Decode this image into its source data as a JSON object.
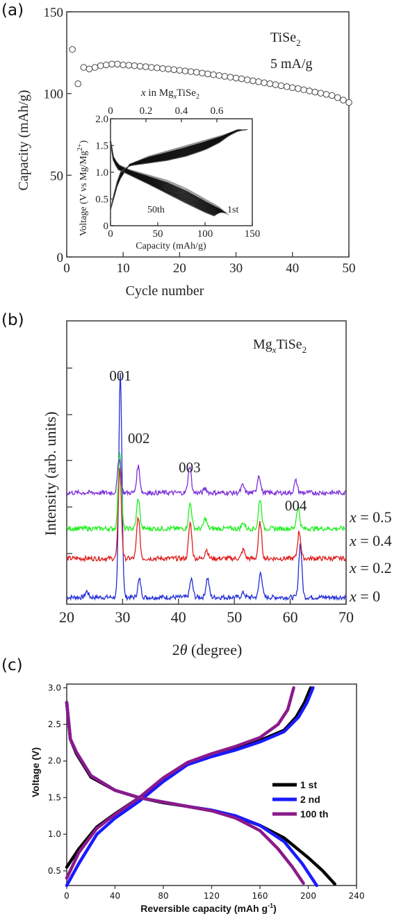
{
  "panels": [
    {
      "label": "(a)",
      "annotation_main": "TiSe",
      "annotation_sub": "2",
      "annotation_rate": "5 mA/g"
    },
    {
      "label": "(b)",
      "annotation_main": "Mg",
      "annotation_x": "x",
      "annotation_rest": "TiSe",
      "annotation_sub": "2"
    },
    {
      "label": "(c)"
    }
  ],
  "chart_data": [
    {
      "type": "scatter",
      "xlabel": "Cycle number",
      "ylabel": "Capacity (mAh/g)",
      "xlim": [
        0,
        50
      ],
      "ylim": [
        0,
        150
      ],
      "xticks": [
        0,
        10,
        20,
        30,
        40,
        50
      ],
      "yticks": [
        0,
        50,
        100,
        150
      ],
      "x": [
        1,
        2,
        3,
        4,
        5,
        6,
        7,
        8,
        9,
        10,
        11,
        12,
        13,
        14,
        15,
        16,
        17,
        18,
        19,
        20,
        21,
        22,
        23,
        24,
        25,
        26,
        27,
        28,
        29,
        30,
        31,
        32,
        33,
        34,
        35,
        36,
        37,
        38,
        39,
        40,
        41,
        42,
        43,
        44,
        45,
        46,
        47,
        48,
        49,
        50
      ],
      "y": [
        127,
        106,
        116,
        115,
        116,
        117,
        117.5,
        118,
        118,
        117.5,
        117.3,
        117,
        116.7,
        116.4,
        116,
        115.7,
        115.3,
        115,
        114.6,
        114.2,
        113.8,
        113.4,
        113,
        112.5,
        112,
        111.5,
        111,
        110.5,
        110,
        109.5,
        109,
        108.4,
        107.8,
        107.2,
        106.6,
        106,
        105.4,
        104.8,
        104.2,
        103.6,
        103,
        102.3,
        101.6,
        100.9,
        100.2,
        99.5,
        98.8,
        97.5,
        96,
        94.5
      ],
      "inset": {
        "type": "line",
        "xlabel": "Capacity (mAh/g)",
        "ylabel": "Voltage (V vs Mg/Mg",
        "ylabel_sup": "2+",
        "ylabel_close": ")",
        "top_axis_label_pre": "x",
        "top_axis_label_post": " in Mg",
        "top_axis_label_x": "x",
        "top_axis_label_tail": "TiSe",
        "top_axis_label_sub": "2",
        "xlim": [
          0,
          150
        ],
        "ylim": [
          0,
          2.0
        ],
        "xticks": [
          0,
          50,
          100,
          150
        ],
        "yticks": [
          0,
          0.5,
          1.0,
          1.5,
          2.0
        ],
        "yticklabels": [
          "0",
          "0.5",
          "1.0",
          "1.5",
          "2.0"
        ],
        "top_xlim": [
          0,
          0.8
        ],
        "top_xticks": [
          0,
          0.2,
          0.4,
          0.6
        ],
        "top_xticklabels": [
          "0",
          "0.2",
          "0.4",
          "0.6"
        ],
        "label_first": "1st",
        "label_fiftieth": "50th",
        "first_discharge": [
          [
            0,
            1.6
          ],
          [
            3,
            1.3
          ],
          [
            8,
            1.15
          ],
          [
            20,
            1.05
          ],
          [
            40,
            0.95
          ],
          [
            60,
            0.85
          ],
          [
            80,
            0.7
          ],
          [
            100,
            0.5
          ],
          [
            115,
            0.35
          ],
          [
            125,
            0.2
          ]
        ],
        "first_charge": [
          [
            0,
            0.3
          ],
          [
            8,
            0.8
          ],
          [
            20,
            1.15
          ],
          [
            40,
            1.3
          ],
          [
            60,
            1.4
          ],
          [
            80,
            1.5
          ],
          [
            100,
            1.6
          ],
          [
            120,
            1.7
          ],
          [
            135,
            1.8
          ]
        ],
        "last_discharge": [
          [
            0,
            1.55
          ],
          [
            3,
            1.2
          ],
          [
            8,
            1.05
          ],
          [
            20,
            0.95
          ],
          [
            40,
            0.78
          ],
          [
            60,
            0.6
          ],
          [
            80,
            0.42
          ],
          [
            100,
            0.25
          ],
          [
            110,
            0.18
          ]
        ],
        "last_charge": [
          [
            0,
            0.3
          ],
          [
            5,
            0.7
          ],
          [
            10,
            1.0
          ],
          [
            20,
            1.12
          ],
          [
            40,
            1.17
          ],
          [
            60,
            1.22
          ],
          [
            80,
            1.3
          ],
          [
            100,
            1.42
          ],
          [
            115,
            1.55
          ],
          [
            125,
            1.68
          ],
          [
            135,
            1.77
          ],
          [
            145,
            1.8
          ]
        ]
      }
    },
    {
      "type": "line",
      "xlabel_theta_prefix": "2",
      "xlabel_theta": "θ",
      "xlabel_rest": " (degree)",
      "ylabel": "Intensity (arb. units)",
      "xlim": [
        20,
        70
      ],
      "xticks": [
        20,
        30,
        40,
        50,
        60,
        70
      ],
      "peak_labels": [
        {
          "text": "001",
          "x": 29.6
        },
        {
          "text": "002",
          "x": 32.9
        },
        {
          "text": "003",
          "x": 42.0
        },
        {
          "text": "004",
          "x": 61.0
        }
      ],
      "series": [
        {
          "name_var": "x",
          "name_rest": " = 0",
          "color": "#1f2bd6",
          "baseline": 0,
          "peaks": [
            [
              23.6,
              4
            ],
            [
              29.6,
              150
            ],
            [
              33.0,
              12
            ],
            [
              42.3,
              12
            ],
            [
              45.2,
              13
            ],
            [
              51.6,
              3
            ],
            [
              54.7,
              17
            ],
            [
              61.8,
              36
            ]
          ]
        },
        {
          "name_var": "x",
          "name_rest": " = 0.2",
          "color": "#e01b1b",
          "baseline": 26,
          "peaks": [
            [
              29.5,
              60
            ],
            [
              32.8,
              28
            ],
            [
              42.1,
              24
            ],
            [
              45.0,
              6
            ],
            [
              51.6,
              6
            ],
            [
              54.6,
              24
            ],
            [
              61.6,
              18
            ]
          ]
        },
        {
          "name_var": "x",
          "name_rest": " = 0.4",
          "color": "#1ff01f",
          "baseline": 46,
          "peaks": [
            [
              29.5,
              52
            ],
            [
              32.8,
              20
            ],
            [
              42.1,
              17
            ],
            [
              44.8,
              7
            ],
            [
              51.6,
              4
            ],
            [
              54.6,
              20
            ],
            [
              61.4,
              15
            ]
          ]
        },
        {
          "name_var": "x",
          "name_rest": " = 0.5",
          "color": "#7b2ed8",
          "baseline": 70,
          "peaks": [
            [
              29.4,
              24
            ],
            [
              32.8,
              18
            ],
            [
              42.0,
              18
            ],
            [
              44.8,
              3
            ],
            [
              51.5,
              5
            ],
            [
              54.4,
              12
            ],
            [
              61.0,
              8
            ]
          ]
        }
      ]
    },
    {
      "type": "line",
      "xlabel": "Reversible capacity (mAh g",
      "xlabel_sup": "-1",
      "xlabel_close": ")",
      "ylabel": "Voltage (V)",
      "xlim": [
        0,
        240
      ],
      "ylim": [
        0.3,
        3.05
      ],
      "xticks": [
        0,
        40,
        80,
        120,
        160,
        200,
        240
      ],
      "yticks": [
        0.5,
        1.0,
        1.5,
        2.0,
        2.5,
        3.0
      ],
      "yticklabels": [
        "0.5",
        "1.0",
        "1.5",
        "2.0",
        "2.5",
        "3.0"
      ],
      "legend_placement": "right",
      "series": [
        {
          "name": "1 st",
          "color": "#000000",
          "discharge": [
            [
              0,
              2.8
            ],
            [
              3,
              2.3
            ],
            [
              8,
              2.1
            ],
            [
              20,
              1.78
            ],
            [
              40,
              1.6
            ],
            [
              60,
              1.5
            ],
            [
              80,
              1.43
            ],
            [
              100,
              1.38
            ],
            [
              120,
              1.32
            ],
            [
              140,
              1.24
            ],
            [
              160,
              1.12
            ],
            [
              180,
              0.95
            ],
            [
              200,
              0.68
            ],
            [
              212,
              0.5
            ],
            [
              222,
              0.32
            ]
          ],
          "charge": [
            [
              0,
              0.55
            ],
            [
              10,
              0.8
            ],
            [
              25,
              1.1
            ],
            [
              40,
              1.28
            ],
            [
              60,
              1.5
            ],
            [
              80,
              1.75
            ],
            [
              100,
              1.97
            ],
            [
              120,
              2.08
            ],
            [
              140,
              2.17
            ],
            [
              160,
              2.28
            ],
            [
              180,
              2.42
            ],
            [
              190,
              2.6
            ],
            [
              197,
              2.8
            ],
            [
              202,
              3.0
            ]
          ]
        },
        {
          "name": "2 nd",
          "color": "#1a1aff",
          "discharge": [
            [
              0,
              2.8
            ],
            [
              3,
              2.3
            ],
            [
              8,
              2.12
            ],
            [
              20,
              1.8
            ],
            [
              40,
              1.6
            ],
            [
              60,
              1.5
            ],
            [
              80,
              1.44
            ],
            [
              100,
              1.38
            ],
            [
              120,
              1.33
            ],
            [
              140,
              1.25
            ],
            [
              160,
              1.12
            ],
            [
              180,
              0.9
            ],
            [
              195,
              0.6
            ],
            [
              207,
              0.3
            ]
          ],
          "charge": [
            [
              0,
              0.3
            ],
            [
              10,
              0.6
            ],
            [
              25,
              1.0
            ],
            [
              40,
              1.22
            ],
            [
              60,
              1.45
            ],
            [
              80,
              1.72
            ],
            [
              100,
              1.95
            ],
            [
              120,
              2.06
            ],
            [
              140,
              2.15
            ],
            [
              160,
              2.26
            ],
            [
              180,
              2.4
            ],
            [
              192,
              2.6
            ],
            [
              199,
              2.8
            ],
            [
              204,
              3.0
            ]
          ]
        },
        {
          "name": "100 th",
          "color": "#8b1a8b",
          "discharge": [
            [
              0,
              2.8
            ],
            [
              3,
              2.3
            ],
            [
              8,
              2.12
            ],
            [
              20,
              1.8
            ],
            [
              40,
              1.6
            ],
            [
              60,
              1.5
            ],
            [
              80,
              1.44
            ],
            [
              100,
              1.38
            ],
            [
              120,
              1.32
            ],
            [
              140,
              1.22
            ],
            [
              160,
              1.05
            ],
            [
              175,
              0.8
            ],
            [
              187,
              0.55
            ],
            [
              196,
              0.33
            ]
          ],
          "charge": [
            [
              0,
              0.4
            ],
            [
              10,
              0.75
            ],
            [
              25,
              1.08
            ],
            [
              40,
              1.27
            ],
            [
              60,
              1.5
            ],
            [
              80,
              1.77
            ],
            [
              100,
              1.98
            ],
            [
              120,
              2.1
            ],
            [
              140,
              2.2
            ],
            [
              160,
              2.32
            ],
            [
              175,
              2.5
            ],
            [
              183,
              2.7
            ],
            [
              188,
              3.0
            ]
          ]
        }
      ]
    }
  ]
}
